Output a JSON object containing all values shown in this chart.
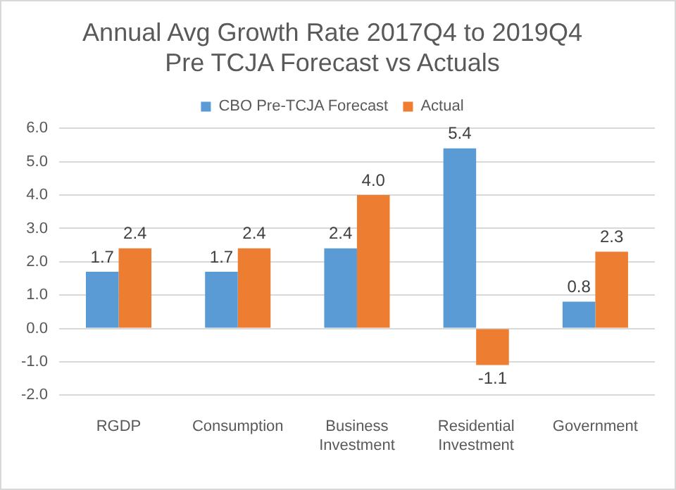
{
  "chart_data": {
    "type": "bar",
    "title": "Annual Avg Growth Rate 2017Q4 to 2019Q4",
    "subtitle": "Pre TCJA Forecast vs Actuals",
    "categories": [
      "RGDP",
      "Consumption",
      "Business Investment",
      "Residential Investment",
      "Government"
    ],
    "series": [
      {
        "name": "CBO Pre-TCJA Forecast",
        "color": "#5b9bd5",
        "values": [
          1.7,
          1.7,
          2.4,
          5.4,
          0.8
        ],
        "value_labels": [
          "1.7",
          "1.7",
          "2.4",
          "5.4",
          "0.8"
        ]
      },
      {
        "name": "Actual",
        "color": "#ed7d31",
        "values": [
          2.4,
          2.4,
          4.0,
          -1.1,
          2.3
        ],
        "value_labels": [
          "2.4",
          "2.4",
          "4.0",
          "-1.1",
          "2.3"
        ]
      }
    ],
    "ylim": [
      -2,
      6
    ],
    "yticks": [
      {
        "value": -2,
        "label": "-2.0"
      },
      {
        "value": -1,
        "label": "-1.0"
      },
      {
        "value": 0,
        "label": "0.0"
      },
      {
        "value": 1,
        "label": "1.0"
      },
      {
        "value": 2,
        "label": "2.0"
      },
      {
        "value": 3,
        "label": "3.0"
      },
      {
        "value": 4,
        "label": "4.0"
      },
      {
        "value": 5,
        "label": "5.0"
      },
      {
        "value": 6,
        "label": "6.0"
      }
    ],
    "grid": "y",
    "legend": "top"
  }
}
